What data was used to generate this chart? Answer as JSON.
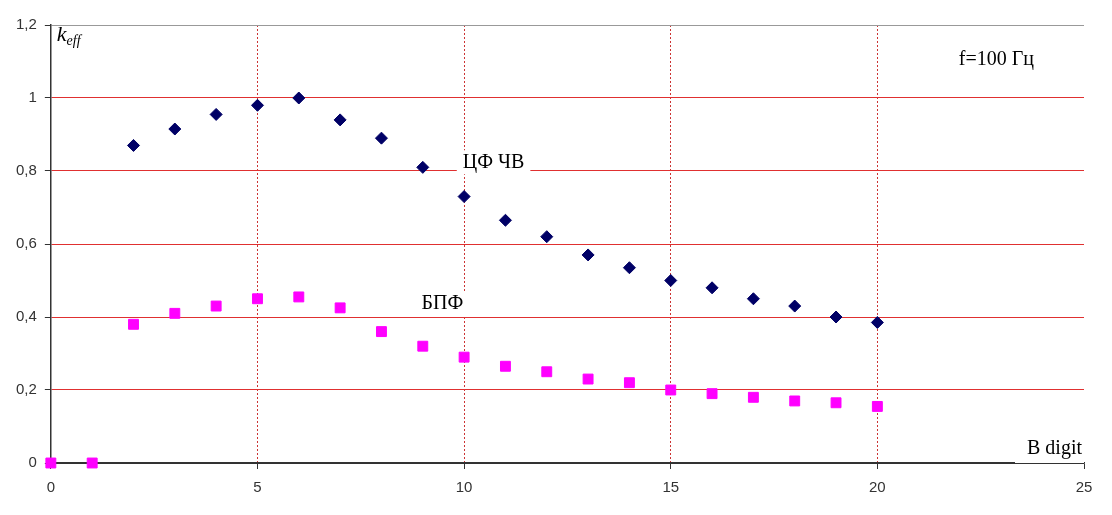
{
  "chart_data": {
    "type": "scatter",
    "xlabel": "B digit",
    "ylabel": "k$_{eff}$",
    "annotations": [
      "f=100 Гц"
    ],
    "xlim": [
      0,
      25
    ],
    "xticks": [
      0,
      5,
      10,
      15,
      20,
      25
    ],
    "ylim": [
      0,
      1.2
    ],
    "yticks": [
      0,
      {
        "value": 0.2,
        "label": "0,2"
      },
      {
        "value": 0.4,
        "label": "0,4"
      },
      {
        "value": 0.6,
        "label": "0,6"
      },
      {
        "value": 0.8,
        "label": "0,8"
      },
      1,
      {
        "value": 1.2,
        "label": "1,2"
      }
    ],
    "grid": true,
    "legend": false,
    "series": [
      {
        "name": "ЦФ ЧВ",
        "color": "#000066",
        "marker": "diamond",
        "x": [
          2,
          3,
          4,
          5,
          6,
          7,
          8,
          9,
          10,
          11,
          12,
          13,
          14,
          15,
          16,
          17,
          18,
          19,
          20
        ],
        "values": [
          0.87,
          0.915,
          0.955,
          0.98,
          1.0,
          0.94,
          0.89,
          0.81,
          0.73,
          0.665,
          0.62,
          0.57,
          0.535,
          0.5,
          0.48,
          0.45,
          0.43,
          0.4,
          0.385
        ]
      },
      {
        "name": "БПФ",
        "color": "#ff00ff",
        "marker": "square",
        "x": [
          0,
          1,
          2,
          3,
          4,
          5,
          6,
          7,
          8,
          9,
          10,
          11,
          12,
          13,
          14,
          15,
          16,
          17,
          18,
          19,
          20
        ],
        "values": [
          0,
          0,
          0.38,
          0.41,
          0.43,
          0.45,
          0.455,
          0.425,
          0.36,
          0.32,
          0.29,
          0.265,
          0.25,
          0.23,
          0.22,
          0.2,
          0.19,
          0.18,
          0.17,
          0.165,
          0.155
        ]
      }
    ]
  }
}
